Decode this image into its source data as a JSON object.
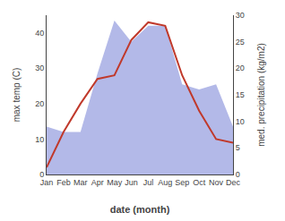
{
  "chart_data": {
    "type": "line",
    "categories": [
      "Jan",
      "Feb",
      "Mar",
      "Apr",
      "May",
      "Jun",
      "Jul",
      "Aug",
      "Sep",
      "Oct",
      "Nov",
      "Dec"
    ],
    "xlabel": "date (month)",
    "ylabel": "max temp (C)",
    "y2label": "med. precipitation (kg/m2)",
    "series": [
      {
        "type": "area",
        "axis": "y2",
        "color": "#b3b9e8",
        "values": [
          9,
          8,
          8,
          19,
          29,
          25,
          28,
          28,
          17,
          16,
          17,
          9
        ]
      },
      {
        "type": "line",
        "color": "#c0392b",
        "values": [
          2,
          12,
          20,
          27,
          28,
          38,
          43,
          42,
          28,
          18,
          10,
          9
        ]
      }
    ],
    "ylim": [
      0,
      45
    ],
    "yticks": [
      0,
      10,
      20,
      30,
      40
    ],
    "y2lim": [
      0,
      30
    ],
    "y2ticks": [
      0,
      5,
      10,
      15,
      20,
      25,
      30
    ],
    "grid": false
  }
}
